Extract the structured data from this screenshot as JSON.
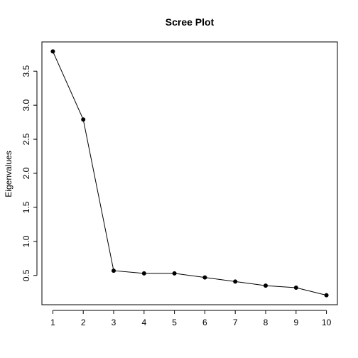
{
  "chart_data": {
    "type": "line",
    "title": "Scree Plot",
    "xlabel": "",
    "ylabel": "Eigenvalues",
    "x": [
      1,
      2,
      3,
      4,
      5,
      6,
      7,
      8,
      9,
      10
    ],
    "values": [
      3.79,
      2.79,
      0.57,
      0.53,
      0.53,
      0.47,
      0.41,
      0.35,
      0.32,
      0.21
    ],
    "xticks": [
      1,
      2,
      3,
      4,
      5,
      6,
      7,
      8,
      9,
      10
    ],
    "xtick_labels": [
      "1",
      "2",
      "3",
      "4",
      "5",
      "6",
      "7",
      "8",
      "9",
      "10"
    ],
    "yticks": [
      0.5,
      1.0,
      1.5,
      2.0,
      2.5,
      3.0,
      3.5
    ],
    "ytick_labels": [
      "0.5",
      "1.0",
      "1.5",
      "2.0",
      "2.5",
      "3.0",
      "3.5"
    ],
    "xlim": [
      0.64,
      10.36
    ],
    "ylim": [
      0.07,
      3.93
    ],
    "grid": false,
    "legend": "none",
    "colors": {
      "line": "#000000",
      "point": "#000000",
      "axis": "#000000",
      "background": "#ffffff"
    }
  }
}
